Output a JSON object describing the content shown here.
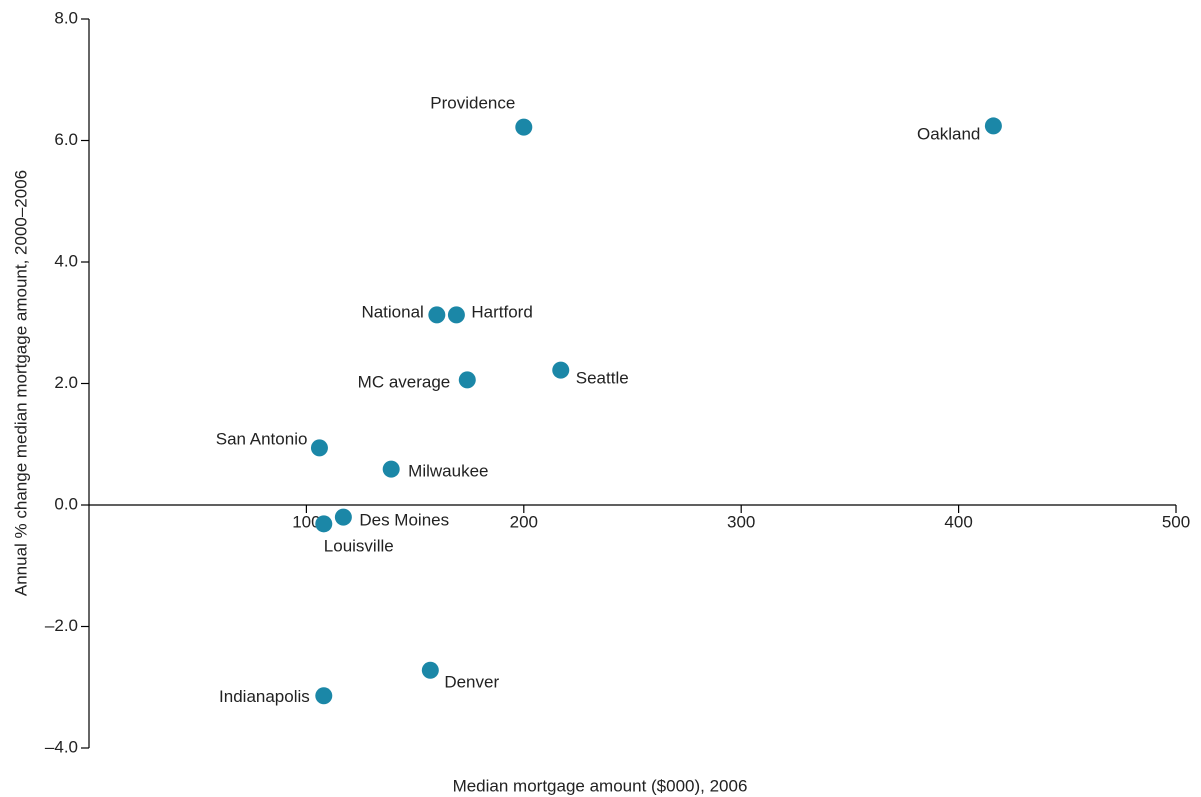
{
  "chart_data": {
    "type": "scatter",
    "x_label": "Median mortgage amount ($000), 2006",
    "y_label": "Annual % change median mortgage amount, 2000–2006",
    "labels": [
      "Providence",
      "Oakland",
      "National",
      "Hartford",
      "MC average",
      "Seattle",
      "San Antonio",
      "Milwaukee",
      "Des Moines",
      "Louisville",
      "Denver",
      "Indianapolis"
    ],
    "x": [
      200,
      416,
      160,
      169,
      174,
      217,
      106,
      139,
      117,
      108,
      157,
      108
    ],
    "values": [
      6.22,
      6.24,
      3.13,
      3.13,
      2.06,
      2.22,
      0.94,
      0.59,
      -0.2,
      -0.31,
      -2.72,
      -3.14
    ],
    "color": "#1b87a7",
    "xlim": [
      0,
      500
    ],
    "xticks": [
      100,
      200,
      300,
      400,
      500
    ],
    "ylim": [
      -4,
      8
    ],
    "yticks": [
      {
        "value": 8,
        "label": "8.0"
      },
      {
        "value": 6,
        "label": "6.0"
      },
      {
        "value": 4,
        "label": "4.0"
      },
      {
        "value": 2,
        "label": "2.0"
      },
      {
        "value": 0,
        "label": "0.0"
      },
      {
        "value": -2,
        "label": "–2.0"
      },
      {
        "value": -4,
        "label": "–4.0"
      }
    ]
  }
}
